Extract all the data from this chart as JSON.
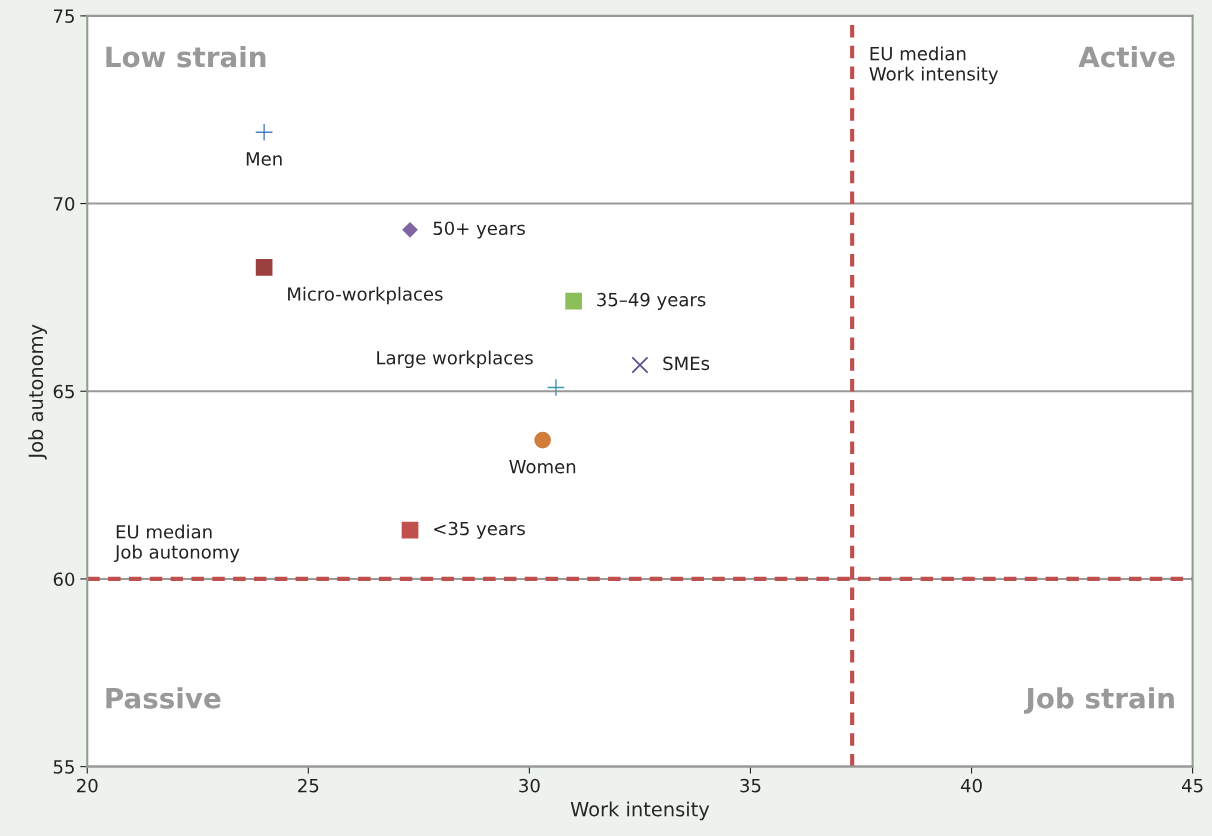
{
  "chart_data": {
    "type": "scatter",
    "xlabel": "Work intensity",
    "ylabel": "Job autonomy",
    "xlim": [
      20,
      45
    ],
    "xticks": [
      20,
      25,
      30,
      35,
      40,
      45
    ],
    "ylim": [
      55,
      75
    ],
    "yticks": [
      55,
      60,
      65,
      70,
      75
    ],
    "grid": "y",
    "series": [
      {
        "name": "Men",
        "color": "#4a7dc9",
        "marker": "cross",
        "x": [
          24.0
        ],
        "values": [
          71.9
        ]
      },
      {
        "name": "50+ years",
        "color": "#8064a2",
        "marker": "diamond",
        "x": [
          27.3
        ],
        "values": [
          69.3
        ]
      },
      {
        "name": "Micro-workplaces",
        "color": "#9b3f3f",
        "marker": "square",
        "x": [
          24.0
        ],
        "values": [
          68.3
        ]
      },
      {
        "name": "35–49 years",
        "color": "#8cbf5a",
        "marker": "square",
        "x": [
          31.0
        ],
        "values": [
          67.4
        ]
      },
      {
        "name": "SMEs",
        "color": "#5b4a8f",
        "marker": "x",
        "x": [
          32.5
        ],
        "values": [
          65.7
        ]
      },
      {
        "name": "Large workplaces",
        "color": "#3a9aaa",
        "marker": "cross",
        "x": [
          30.6
        ],
        "values": [
          65.1
        ]
      },
      {
        "name": "Women",
        "color": "#d07d3c",
        "marker": "circle",
        "x": [
          30.3
        ],
        "values": [
          63.7
        ]
      },
      {
        "name": "<35 years",
        "color": "#c0504d",
        "marker": "square",
        "x": [
          27.3
        ],
        "values": [
          61.3
        ]
      }
    ],
    "ref_lines": [
      {
        "axis": "x",
        "value": 37.3,
        "label": "EU median\nWork intensity",
        "color": "#c0504d",
        "line_style": "dashed"
      },
      {
        "axis": "y",
        "value": 60.0,
        "label": "EU median\nJob autonomy",
        "color": "#c0504d",
        "line_style": "dashed"
      }
    ],
    "annotations": [
      "Low strain",
      "Active",
      "Passive",
      "Job strain"
    ]
  }
}
